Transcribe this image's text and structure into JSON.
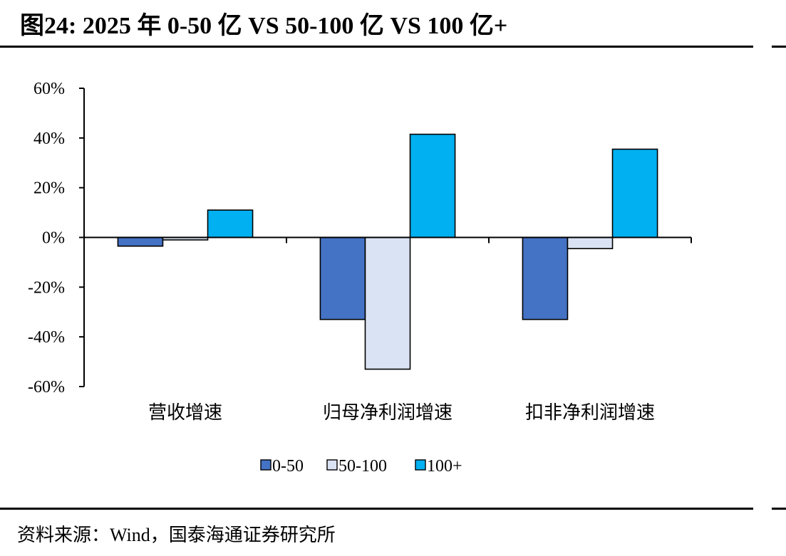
{
  "header": {
    "title": "图24:  2025 年 0-50 亿 VS 50-100 亿 VS 100 亿+"
  },
  "footer": {
    "source": "资料来源：Wind，国泰海通证券研究所"
  },
  "colors": {
    "series_0_50": "#4472C4",
    "series_50_100": "#DAE3F3",
    "series_100_plus": "#00B0F0",
    "axis": "#000000"
  },
  "chart_data": {
    "type": "bar",
    "title": "",
    "xlabel": "",
    "ylabel": "",
    "categories": [
      "营收增速",
      "归母净利润增速",
      "扣非净利润增速"
    ],
    "ylim": [
      -60,
      60
    ],
    "yticks": [
      60,
      40,
      20,
      0,
      -20,
      -40,
      -60
    ],
    "ytick_labels": [
      "60%",
      "40%",
      "20%",
      "0%",
      "-20%",
      "-40%",
      "-60%"
    ],
    "grid": false,
    "legend_position": "bottom",
    "series": [
      {
        "name": "0-50",
        "values": [
          -3.5,
          -33,
          -33
        ]
      },
      {
        "name": "50-100",
        "values": [
          -1,
          -53,
          -4.5
        ]
      },
      {
        "name": "100+",
        "values": [
          11,
          41.5,
          35.5
        ]
      }
    ]
  }
}
